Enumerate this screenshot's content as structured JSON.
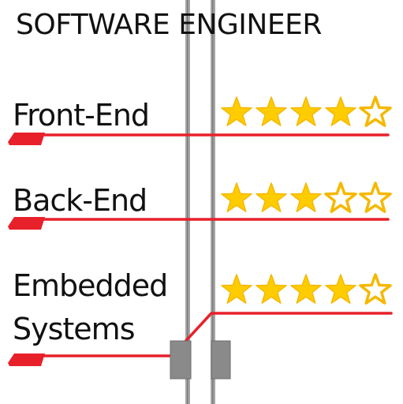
{
  "title": "SOFTWARE ENGINEER",
  "colors": {
    "accent": "#e8202a",
    "star_fill": "#ffcc00",
    "star_outline": "#f5b800",
    "bar": "#a6a6a6",
    "bar_dark": "#707070"
  },
  "skills": [
    {
      "label": "Front-End",
      "rating": 4,
      "max": 5
    },
    {
      "label": "Back-End",
      "rating": 3,
      "max": 5
    },
    {
      "label": "Embedded",
      "label2": "Systems",
      "rating": 4,
      "max": 5
    }
  ]
}
